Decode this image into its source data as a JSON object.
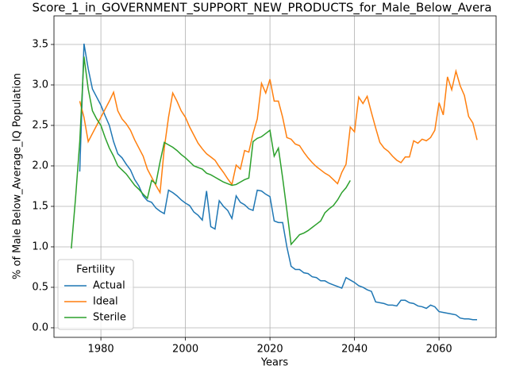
{
  "chart_data": {
    "type": "line",
    "title": "Score_1_in_GOVERNMENT_SUPPORT_NEW_PRODUCTS_for_Male_Below_Avera",
    "x_label": "Years",
    "y_label": "% of Male Below_Average_IQ Population",
    "legend_title": "Fertility",
    "legend": "lower left",
    "grid": true,
    "x": [
      1973,
      1974,
      1975,
      1976,
      1977,
      1978,
      1979,
      1980,
      1981,
      1982,
      1983,
      1984,
      1985,
      1986,
      1987,
      1988,
      1989,
      1990,
      1991,
      1992,
      1993,
      1994,
      1995,
      1996,
      1997,
      1998,
      1999,
      2000,
      2001,
      2002,
      2003,
      2004,
      2005,
      2006,
      2007,
      2008,
      2009,
      2010,
      2011,
      2012,
      2013,
      2014,
      2015,
      2016,
      2017,
      2018,
      2019,
      2020,
      2021,
      2022,
      2023,
      2024,
      2025,
      2026,
      2027,
      2028,
      2029,
      2030,
      2031,
      2032,
      2033,
      2034,
      2035,
      2036,
      2037,
      2038,
      2039,
      2040,
      2041,
      2042,
      2043,
      2044,
      2045,
      2046,
      2047,
      2048,
      2049,
      2050,
      2051,
      2052,
      2053,
      2054,
      2055,
      2056,
      2057,
      2058,
      2059,
      2060,
      2061,
      2062,
      2063,
      2064,
      2065,
      2066,
      2067,
      2068,
      2069
    ],
    "series": [
      {
        "name": "Actual",
        "color": "#1f77b4",
        "values": [
          null,
          null,
          1.93,
          3.51,
          3.2,
          2.95,
          2.85,
          2.75,
          2.62,
          2.5,
          2.3,
          2.15,
          2.1,
          2.02,
          1.95,
          1.83,
          1.75,
          1.63,
          1.57,
          1.55,
          1.48,
          1.44,
          1.41,
          1.7,
          1.67,
          1.63,
          1.58,
          1.54,
          1.51,
          1.43,
          1.39,
          1.33,
          1.69,
          1.25,
          1.22,
          1.57,
          1.5,
          1.45,
          1.35,
          1.63,
          1.55,
          1.52,
          1.47,
          1.45,
          1.7,
          1.69,
          1.65,
          1.62,
          1.32,
          1.3,
          1.3,
          1.0,
          0.76,
          0.72,
          0.72,
          0.68,
          0.67,
          0.63,
          0.62,
          0.58,
          0.58,
          0.55,
          0.53,
          0.51,
          0.49,
          0.62,
          0.59,
          0.56,
          0.52,
          0.5,
          0.47,
          0.45,
          0.32,
          0.31,
          0.3,
          0.28,
          0.28,
          0.27,
          0.34,
          0.34,
          0.31,
          0.3,
          0.27,
          0.26,
          0.24,
          0.28,
          0.26,
          0.2,
          0.19,
          0.18,
          0.17,
          0.16,
          0.12,
          0.11,
          0.11,
          0.1,
          0.1
        ]
      },
      {
        "name": "Ideal",
        "color": "#ff7f0e",
        "values": [
          null,
          null,
          2.8,
          2.6,
          2.3,
          2.4,
          2.5,
          2.6,
          2.7,
          2.8,
          2.91,
          2.68,
          2.58,
          2.52,
          2.44,
          2.32,
          2.22,
          2.12,
          1.96,
          1.86,
          1.76,
          1.67,
          2.22,
          2.6,
          2.9,
          2.8,
          2.68,
          2.6,
          2.48,
          2.38,
          2.28,
          2.21,
          2.15,
          2.11,
          2.07,
          1.99,
          1.92,
          1.84,
          1.77,
          2.01,
          1.96,
          2.19,
          2.17,
          2.4,
          2.58,
          3.02,
          2.9,
          3.07,
          2.8,
          2.8,
          2.6,
          2.35,
          2.33,
          2.27,
          2.25,
          2.17,
          2.1,
          2.04,
          1.99,
          1.95,
          1.91,
          1.88,
          1.83,
          1.78,
          1.92,
          2.02,
          2.48,
          2.42,
          2.85,
          2.77,
          2.86,
          2.66,
          2.47,
          2.29,
          2.22,
          2.18,
          2.12,
          2.07,
          2.04,
          2.11,
          2.11,
          2.31,
          2.28,
          2.33,
          2.31,
          2.35,
          2.44,
          2.78,
          2.63,
          3.1,
          2.94,
          3.17,
          2.99,
          2.87,
          2.61,
          2.53,
          2.32
        ]
      },
      {
        "name": "Sterile",
        "color": "#2ca02c",
        "values": [
          0.98,
          1.6,
          2.3,
          3.35,
          2.95,
          2.68,
          2.58,
          2.5,
          2.35,
          2.22,
          2.12,
          2.0,
          1.95,
          1.9,
          1.83,
          1.76,
          1.71,
          1.65,
          1.6,
          1.82,
          1.78,
          2.05,
          2.29,
          2.26,
          2.23,
          2.19,
          2.14,
          2.1,
          2.05,
          2.0,
          1.98,
          1.96,
          1.91,
          1.89,
          1.86,
          1.83,
          1.8,
          1.78,
          1.76,
          1.77,
          1.8,
          1.83,
          1.85,
          2.3,
          2.34,
          2.36,
          2.4,
          2.44,
          2.12,
          2.22,
          1.85,
          1.45,
          1.03,
          1.09,
          1.15,
          1.17,
          1.2,
          1.24,
          1.28,
          1.32,
          1.42,
          1.47,
          1.51,
          1.58,
          1.67,
          1.73,
          1.82,
          null,
          null,
          null,
          null,
          null,
          null,
          null,
          null,
          null,
          null,
          null,
          null,
          null,
          null,
          null,
          null,
          null,
          null,
          null,
          null,
          null,
          null,
          null,
          null,
          null,
          null,
          null,
          null,
          null,
          null
        ]
      }
    ],
    "xlim": [
      1968.9,
      2073.5
    ],
    "xticks": [
      1980,
      2000,
      2020,
      2040,
      2060
    ],
    "ylim": [
      -0.118,
      3.853
    ],
    "yticks": [
      {
        "value": 0,
        "label": "0.0"
      },
      {
        "value": 0.5,
        "label": "0.5"
      },
      {
        "value": 1,
        "label": "1.0"
      },
      {
        "value": 1.5,
        "label": "1.5"
      },
      {
        "value": 2,
        "label": "2.0"
      },
      {
        "value": 2.5,
        "label": "2.5"
      },
      {
        "value": 3,
        "label": "3.0"
      },
      {
        "value": 3.5,
        "label": "3.5"
      }
    ]
  }
}
